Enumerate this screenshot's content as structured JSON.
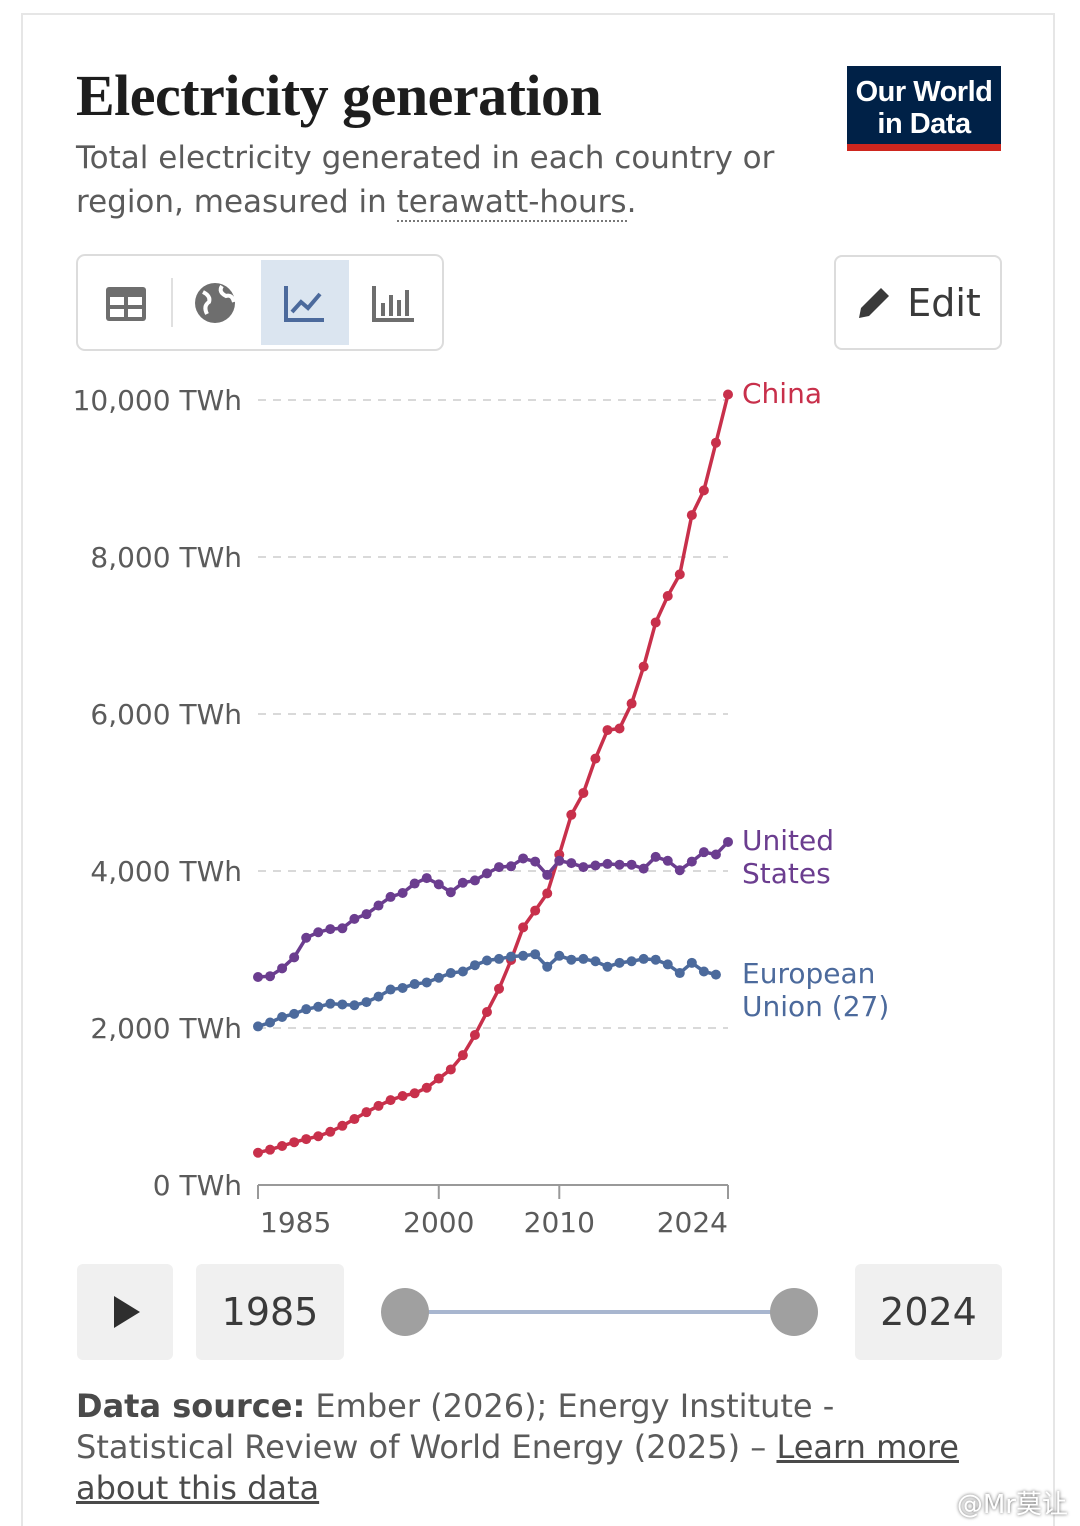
{
  "chart_data": {
    "type": "line",
    "title": "Electricity generation",
    "subtitle": "Total electricity generated in each country or region, measured in ",
    "subtitle_link": "terawatt-hours",
    "subtitle_end": ".",
    "x": [
      1985,
      1986,
      1987,
      1988,
      1989,
      1990,
      1991,
      1992,
      1993,
      1994,
      1995,
      1996,
      1997,
      1998,
      1999,
      2000,
      2001,
      2002,
      2003,
      2004,
      2005,
      2006,
      2007,
      2008,
      2009,
      2010,
      2011,
      2012,
      2013,
      2014,
      2015,
      2016,
      2017,
      2018,
      2019,
      2020,
      2021,
      2022,
      2023,
      2024
    ],
    "xlim": [
      1985,
      2024
    ],
    "xticks": [
      1985,
      2000,
      2010,
      2024
    ],
    "ylim": [
      0,
      10000
    ],
    "yticks": [
      {
        "value": 0,
        "label": "0 TWh"
      },
      {
        "value": 2000,
        "label": "2,000 TWh"
      },
      {
        "value": 4000,
        "label": "4,000 TWh"
      },
      {
        "value": 6000,
        "label": "6,000 TWh"
      },
      {
        "value": 8000,
        "label": "8,000 TWh"
      },
      {
        "value": 10000,
        "label": "10,000 TWh"
      }
    ],
    "grid": true,
    "series": [
      {
        "name": "China",
        "color": "#c8304b",
        "values": [
          411,
          450,
          497,
          545,
          585,
          621,
          678,
          754,
          840,
          928,
          1008,
          1081,
          1134,
          1168,
          1239,
          1356,
          1472,
          1654,
          1911,
          2204,
          2500,
          2866,
          3282,
          3496,
          3715,
          4208,
          4716,
          4994,
          5432,
          5795,
          5815,
          6133,
          6604,
          7166,
          7503,
          7779,
          8534,
          8849,
          9456,
          10070
        ]
      },
      {
        "name": "United States",
        "color": "#6b3d8f",
        "values": [
          2650,
          2660,
          2760,
          2900,
          3150,
          3220,
          3260,
          3270,
          3390,
          3450,
          3560,
          3670,
          3720,
          3840,
          3910,
          3830,
          3730,
          3850,
          3880,
          3970,
          4050,
          4060,
          4160,
          4120,
          3950,
          4130,
          4100,
          4050,
          4070,
          4090,
          4080,
          4080,
          4030,
          4180,
          4130,
          4010,
          4120,
          4240,
          4210,
          4370
        ]
      },
      {
        "name": "European Union (27)",
        "color": "#4c6a9c",
        "values": [
          2020,
          2070,
          2140,
          2180,
          2240,
          2270,
          2310,
          2300,
          2290,
          2330,
          2400,
          2490,
          2510,
          2560,
          2580,
          2640,
          2700,
          2720,
          2800,
          2860,
          2880,
          2910,
          2920,
          2940,
          2780,
          2920,
          2870,
          2880,
          2850,
          2780,
          2830,
          2850,
          2880,
          2870,
          2810,
          2700,
          2830,
          2720,
          2680,
          null
        ]
      }
    ]
  },
  "ui": {
    "logo": "Our World in Data",
    "edit": "Edit",
    "source_label": "Data source:",
    "source_text": " Ember (2026); Energy Institute - Statistical Review of World Energy (2025) – ",
    "learn_more": "Learn more about this data",
    "watermark": "@Mr莫让"
  }
}
